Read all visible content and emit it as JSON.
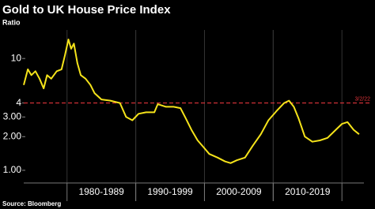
{
  "chart_data": {
    "type": "line",
    "title": "Gold to UK House Price Index",
    "subtitle": "Ratio",
    "source": "Source: Bloomberg",
    "log_scale": true,
    "xlim": [
      1973.7,
      2023.2
    ],
    "xticks": [
      {
        "value": 1985,
        "label": "1980-1989"
      },
      {
        "value": 1995,
        "label": "1990-1999"
      },
      {
        "value": 2005,
        "label": "2000-2009"
      },
      {
        "value": 2015,
        "label": "2010-2019"
      }
    ],
    "ylim": [
      0.77,
      18
    ],
    "yticks": [
      {
        "value": 1,
        "label": "1.00"
      },
      {
        "value": 2,
        "label": "2.00"
      },
      {
        "value": 3,
        "label": "3.00"
      },
      4,
      10
    ],
    "reference_line": {
      "value": 4,
      "label": "3/2/22",
      "color": "#e0343a"
    },
    "series": [
      {
        "color": "#f5e31a",
        "x": [
          1973.7,
          1974.3,
          1974.8,
          1975.4,
          1976.0,
          1976.6,
          1977.1,
          1977.7,
          1978.5,
          1979.2,
          1979.7,
          1980.2,
          1980.6,
          1981.0,
          1981.5,
          1982.0,
          1982.7,
          1983.4,
          1984.0,
          1985.0,
          1986.3,
          1987.7,
          1988.6,
          1989.5,
          1990.4,
          1991.5,
          1992.7,
          1993.2,
          1994.4,
          1995.5,
          1996.5,
          1997.3,
          1998.1,
          1999.0,
          1999.9,
          2000.7,
          2001.9,
          2003.0,
          2003.8,
          2004.7,
          2005.9,
          2007.0,
          2008.2,
          2009.3,
          2010.5,
          2011.6,
          2012.3,
          2013.0,
          2013.7,
          2014.6,
          2015.7,
          2016.8,
          2017.9,
          2019.1,
          2020.0,
          2020.8,
          2021.7,
          2022.5
        ],
        "values": [
          5.8,
          8.0,
          7.1,
          7.7,
          6.6,
          5.4,
          7.1,
          6.6,
          7.7,
          8.0,
          10.7,
          14.8,
          12.2,
          13.6,
          9.1,
          7.1,
          6.6,
          5.8,
          4.9,
          4.3,
          4.2,
          4.0,
          3.0,
          2.8,
          3.2,
          3.3,
          3.3,
          3.9,
          3.7,
          3.7,
          3.6,
          2.9,
          2.3,
          1.85,
          1.6,
          1.4,
          1.3,
          1.2,
          1.16,
          1.23,
          1.3,
          1.65,
          2.1,
          2.8,
          3.4,
          4.0,
          4.2,
          3.7,
          2.9,
          2.0,
          1.8,
          1.85,
          1.95,
          2.3,
          2.6,
          2.7,
          2.3,
          2.1
        ]
      }
    ]
  }
}
